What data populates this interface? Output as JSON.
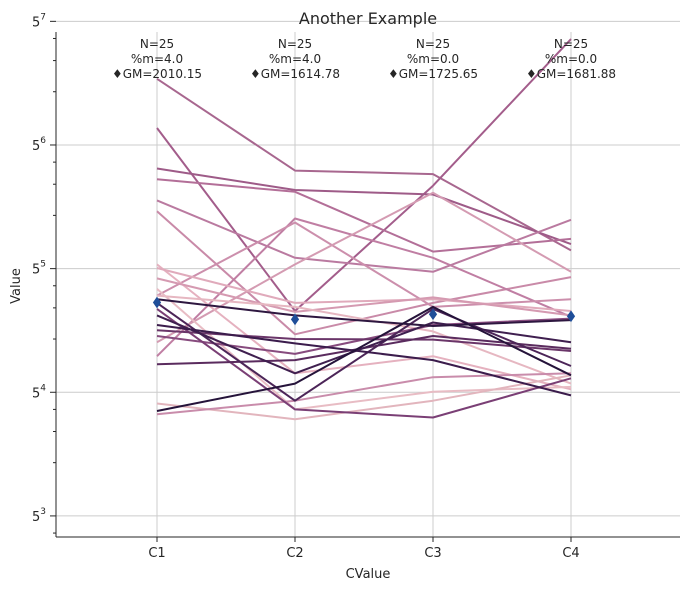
{
  "chart_data": {
    "type": "line",
    "title": "Another Example",
    "xlabel": "CValue",
    "ylabel": "Value",
    "y_scale": "log5",
    "ylim": [
      95,
      68000
    ],
    "categories": [
      "C1",
      "C2",
      "C3",
      "C4"
    ],
    "y_ticks": [
      {
        "base": "5",
        "exp": "3",
        "value": 125
      },
      {
        "base": "5",
        "exp": "4",
        "value": 625
      },
      {
        "base": "5",
        "exp": "5",
        "value": 3125
      },
      {
        "base": "5",
        "exp": "6",
        "value": 15625
      },
      {
        "base": "5",
        "exp": "7",
        "value": 78125
      }
    ],
    "grid": true,
    "annotations": [
      {
        "n": "N=25",
        "m": "%m=4.0",
        "gm": "♦GM=2010.15"
      },
      {
        "n": "N=25",
        "m": "%m=4.0",
        "gm": "♦GM=1614.78"
      },
      {
        "n": "N=25",
        "m": "%m=0.0",
        "gm": "♦GM=1725.65"
      },
      {
        "n": "N=25",
        "m": "%m=0.0",
        "gm": "♦GM=1681.88"
      }
    ],
    "geometric_means": [
      2010.15,
      1614.78,
      1725.65,
      1681.88
    ],
    "series": [
      {
        "color": "#a8678f",
        "values": [
          37000,
          11200,
          10700,
          3960
        ]
      },
      {
        "color": "#a35d8b",
        "values": [
          19500,
          1800,
          9200,
          62000
        ]
      },
      {
        "color": "#9e5b88",
        "values": [
          11500,
          8700,
          8200,
          4300
        ]
      },
      {
        "color": "#b36f98",
        "values": [
          10000,
          8500,
          3900,
          4600
        ]
      },
      {
        "color": "#ba7aa0",
        "values": [
          7600,
          3600,
          3000,
          5900
        ]
      },
      {
        "color": "#c98aa8",
        "values": [
          6600,
          1330,
          2000,
          2800
        ]
      },
      {
        "color": "#c07ea3",
        "values": [
          1000,
          6000,
          3600,
          1670
        ]
      },
      {
        "color": "#cc8fac",
        "values": [
          2200,
          5700,
          1900,
          2100
        ]
      },
      {
        "color": "#d49bb2",
        "values": [
          1200,
          3300,
          8400,
          3000
        ]
      },
      {
        "color": "#e5b1bf",
        "values": [
          3300,
          800,
          1000,
          650
        ]
      },
      {
        "color": "#e0aabb",
        "values": [
          3150,
          2000,
          2100,
          1800
        ]
      },
      {
        "color": "#d59ab1",
        "values": [
          2750,
          1780,
          2150,
          1700
        ]
      },
      {
        "color": "#e6b7c1",
        "values": [
          2200,
          1900,
          1380,
          700
        ]
      },
      {
        "color": "#e8bcc4",
        "values": [
          2400,
          500,
          630,
          670
        ]
      },
      {
        "color": "#e2b5bd",
        "values": [
          540,
          440,
          560,
          780
        ]
      },
      {
        "color": "#c98cab",
        "values": [
          470,
          560,
          760,
          800
        ]
      },
      {
        "color": "#874b7e",
        "values": [
          1300,
          1030,
          1500,
          1630
        ]
      },
      {
        "color": "#7a3f75",
        "values": [
          1850,
          500,
          450,
          750
        ]
      },
      {
        "color": "#6a3569",
        "values": [
          1400,
          1250,
          1240,
          1070
        ]
      },
      {
        "color": "#5a2b5e",
        "values": [
          900,
          950,
          1300,
          1100
        ]
      },
      {
        "color": "#4c2558",
        "values": [
          2000,
          560,
          1850,
          880
        ]
      },
      {
        "color": "#3f1f4f",
        "values": [
          1700,
          800,
          1550,
          1200
        ]
      },
      {
        "color": "#3b1c4c",
        "values": [
          1500,
          1180,
          950,
          600
        ]
      },
      {
        "color": "#2e1740",
        "values": [
          2100,
          1700,
          1480,
          1600
        ]
      },
      {
        "color": "#25133a",
        "values": [
          490,
          700,
          1900,
          780
        ]
      }
    ]
  }
}
